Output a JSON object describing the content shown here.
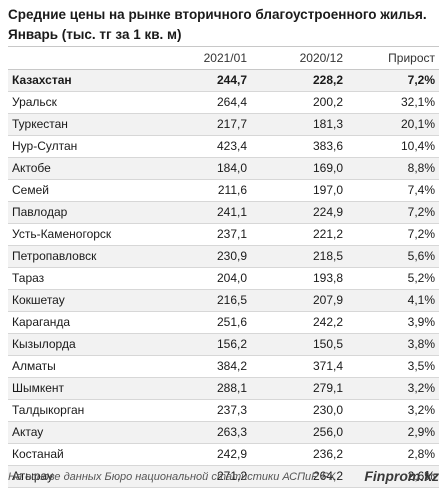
{
  "chart_data": {
    "type": "table",
    "title": "Средние цены на рынке вторичного благоустроенного жилья. Январь (тыс. тг за 1 кв. м)",
    "columns": [
      "",
      "2021/01",
      "2020/12",
      "Прирост"
    ],
    "rows": [
      {
        "name": "Казахстан",
        "v2021": "244,7",
        "v2020": "228,2",
        "growth": "7,2%",
        "bold": true
      },
      {
        "name": "Уральск",
        "v2021": "264,4",
        "v2020": "200,2",
        "growth": "32,1%"
      },
      {
        "name": "Туркестан",
        "v2021": "217,7",
        "v2020": "181,3",
        "growth": "20,1%"
      },
      {
        "name": "Нур-Султан",
        "v2021": "423,4",
        "v2020": "383,6",
        "growth": "10,4%"
      },
      {
        "name": "Актобе",
        "v2021": "184,0",
        "v2020": "169,0",
        "growth": "8,8%"
      },
      {
        "name": "Семей",
        "v2021": "211,6",
        "v2020": "197,0",
        "growth": "7,4%"
      },
      {
        "name": "Павлодар",
        "v2021": "241,1",
        "v2020": "224,9",
        "growth": "7,2%"
      },
      {
        "name": "Усть-Каменогорск",
        "v2021": "237,1",
        "v2020": "221,2",
        "growth": "7,2%"
      },
      {
        "name": "Петропавловск",
        "v2021": "230,9",
        "v2020": "218,5",
        "growth": "5,6%"
      },
      {
        "name": "Тараз",
        "v2021": "204,0",
        "v2020": "193,8",
        "growth": "5,2%"
      },
      {
        "name": "Кокшетау",
        "v2021": "216,5",
        "v2020": "207,9",
        "growth": "4,1%"
      },
      {
        "name": "Караганда",
        "v2021": "251,6",
        "v2020": "242,2",
        "growth": "3,9%"
      },
      {
        "name": "Кызылорда",
        "v2021": "156,2",
        "v2020": "150,5",
        "growth": "3,8%"
      },
      {
        "name": "Алматы",
        "v2021": "384,2",
        "v2020": "371,4",
        "growth": "3,5%"
      },
      {
        "name": "Шымкент",
        "v2021": "288,1",
        "v2020": "279,1",
        "growth": "3,2%"
      },
      {
        "name": "Талдыкорган",
        "v2021": "237,3",
        "v2020": "230,0",
        "growth": "3,2%"
      },
      {
        "name": "Актау",
        "v2021": "263,3",
        "v2020": "256,0",
        "growth": "2,9%"
      },
      {
        "name": "Костанай",
        "v2021": "242,9",
        "v2020": "236,2",
        "growth": "2,8%"
      },
      {
        "name": "Атырау",
        "v2021": "271,2",
        "v2020": "264,2",
        "growth": "2,6%"
      }
    ],
    "source": "На основе данных Бюро национальной статистики АСПиР РК",
    "brand": "Finprom.kz"
  }
}
